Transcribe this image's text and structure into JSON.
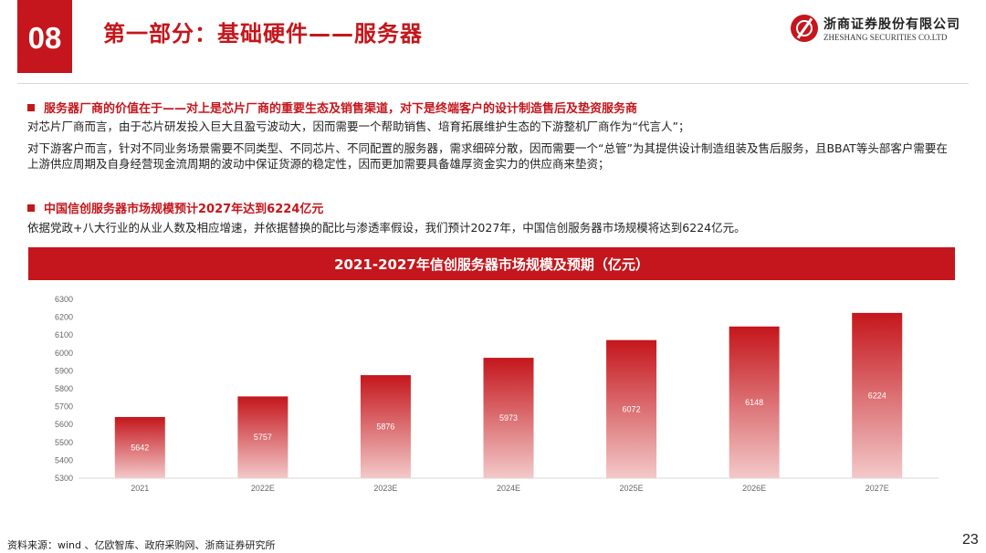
{
  "header": {
    "badge": "08",
    "title": "第一部分：基础硬件——服务器",
    "logo_cn": "浙商证券股份有限公司",
    "logo_en": "ZHESHANG SECURITIES CO.LTD"
  },
  "sections": [
    {
      "heading": "服务器厂商的价值在于——对上是芯片厂商的重要生态及销售渠道，对下是终端客户的设计制造售后及垫资服务商",
      "paragraphs": [
        "对芯片厂商而言，由于芯片研发投入巨大且盈亏波动大，因而需要一个帮助销售、培育拓展维护生态的下游整机厂商作为“代言人”；",
        "对下游客户而言，针对不同业务场景需要不同类型、不同芯片、不同配置的服务器，需求细碎分散，因而需要一个“总管”为其提供设计制造组装及售后服务，且BBAT等头部客户需要在上游供应周期及自身经营现金流周期的波动中保证货源的稳定性，因而更加需要具备雄厚资金实力的供应商来垫资；"
      ]
    },
    {
      "heading": "中国信创服务器市场规模预计2027年达到6224亿元",
      "paragraphs": [
        "依据党政+八大行业的从业人数及相应增速，并依据替换的配比与渗透率假设，我们预计2027年，中国信创服务器市场规模将达到6224亿元。"
      ]
    }
  ],
  "chart_title": "2021-2027年信创服务器市场规模及预期（亿元）",
  "chart_data": {
    "type": "bar",
    "title": "2021-2027年信创服务器市场规模及预期（亿元）",
    "categories": [
      "2021",
      "2022E",
      "2023E",
      "2024E",
      "2025E",
      "2026E",
      "2027E"
    ],
    "values": [
      5642,
      5757,
      5876,
      5973,
      6072,
      6148,
      6224
    ],
    "ylim": [
      5300,
      6300
    ],
    "yticks": [
      5300,
      5400,
      5500,
      5600,
      5700,
      5800,
      5900,
      6000,
      6100,
      6200,
      6300
    ],
    "grid": false,
    "bar_gradient": [
      "#c4161c",
      "#f3c9c9"
    ],
    "label_color": "#ffffff"
  },
  "footer": {
    "source": "资料来源：wind 、亿欧智库、政府采购网、浙商证券研究所",
    "page": "23"
  }
}
